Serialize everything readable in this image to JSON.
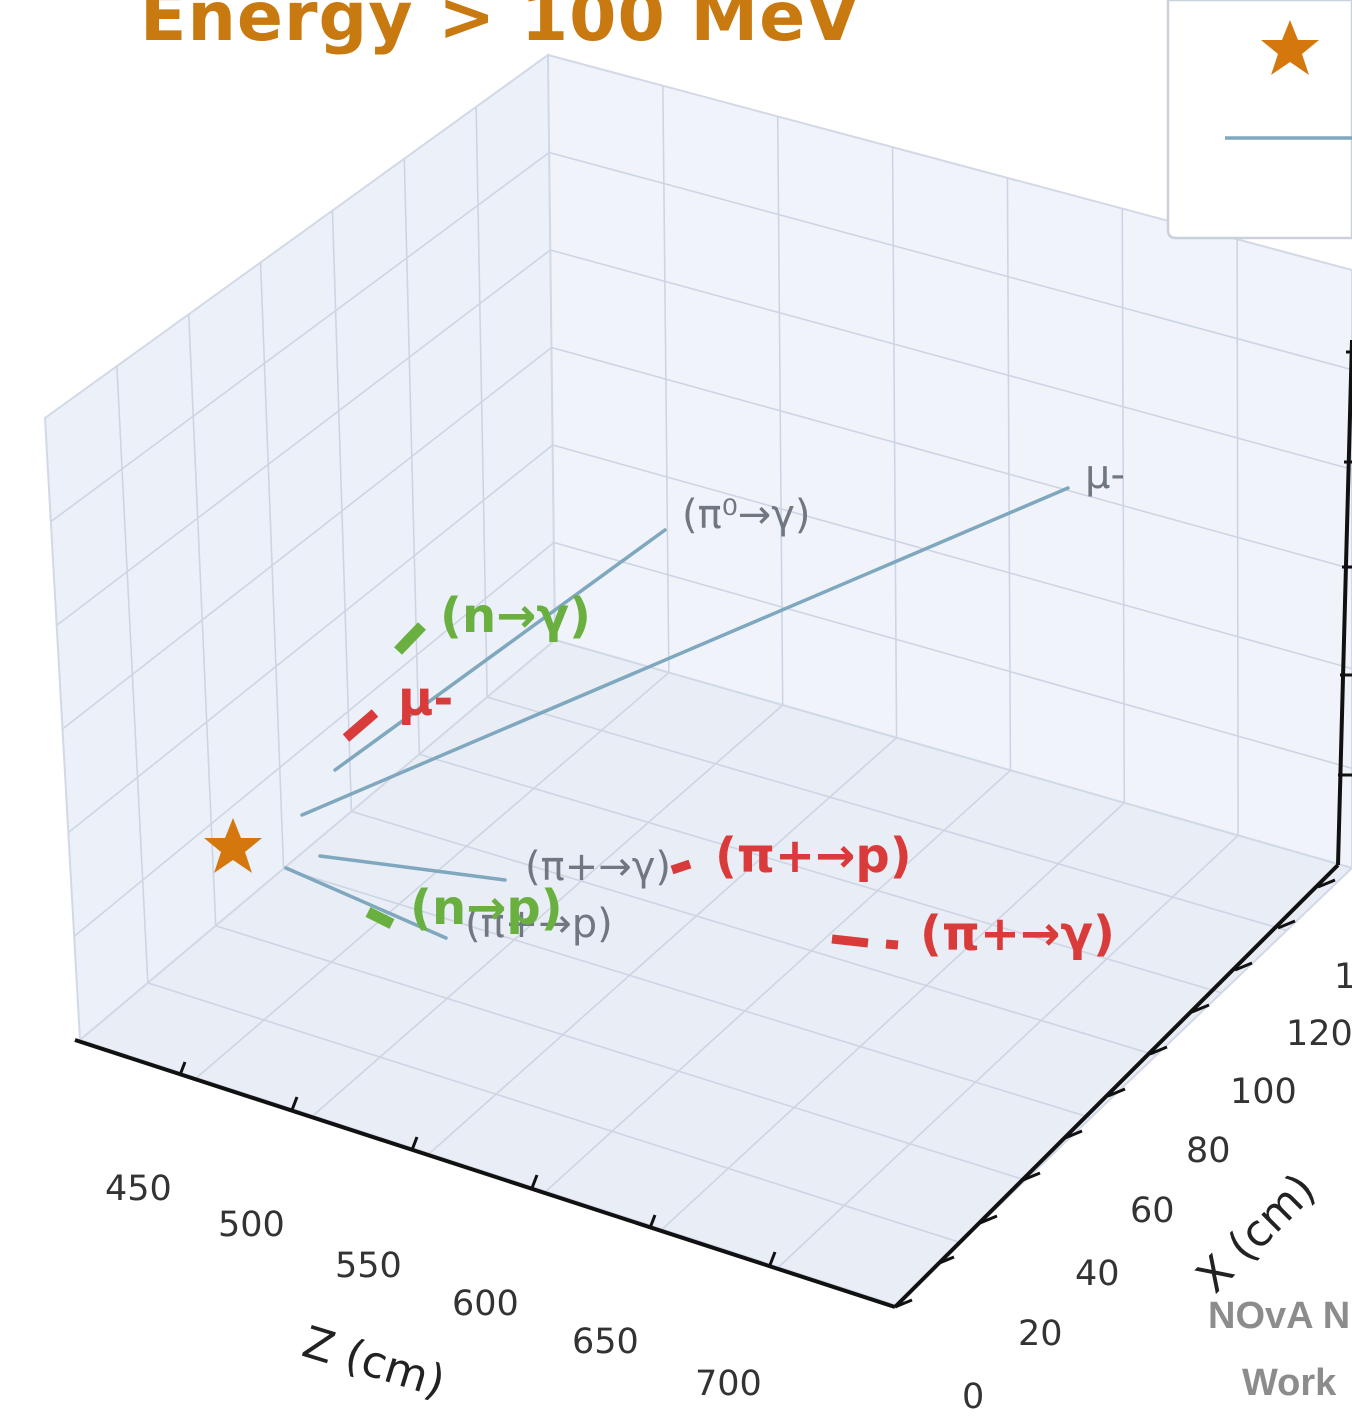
{
  "title": "Energy > 100 MeV",
  "watermark": {
    "line1": "NOvA N",
    "line2": "Work"
  },
  "colors": {
    "title": "#c8790f",
    "star": "#d4780e",
    "track": "#7fa7bd",
    "green_label": "#6ab040",
    "red_label": "#d93b3b",
    "gray_label": "#707780",
    "pane": "#ecf0f8",
    "grid": "#cdd5e4"
  },
  "chart_data": {
    "type": "scatter",
    "projection": "3d",
    "axes": {
      "z": {
        "label": "Z (cm)",
        "ticks": [
          "450",
          "500",
          "550",
          "600",
          "650",
          "700"
        ]
      },
      "x": {
        "label": "X (cm)",
        "ticks": [
          "0",
          "20",
          "40",
          "60",
          "80",
          "100",
          "120",
          "1"
        ]
      }
    },
    "grid": true,
    "legend_placement": "top-right",
    "legend_entries": [
      {
        "marker": "star",
        "label": ""
      },
      {
        "marker": "line",
        "label": ""
      }
    ],
    "vertex": {
      "marker": "star"
    },
    "tracks": [
      {
        "label": "μ-"
      },
      {
        "label": "(π⁰→γ)"
      },
      {
        "label": "(π+→γ)"
      },
      {
        "label": "(π+→p)"
      }
    ],
    "annotations": [
      {
        "text": "(n→γ)",
        "color": "green"
      },
      {
        "text": "μ-",
        "color": "red"
      },
      {
        "text": "(n→p)",
        "color": "green"
      },
      {
        "text": "(π+→p)",
        "color": "red"
      },
      {
        "text": "(π+→γ)",
        "color": "red"
      }
    ]
  }
}
